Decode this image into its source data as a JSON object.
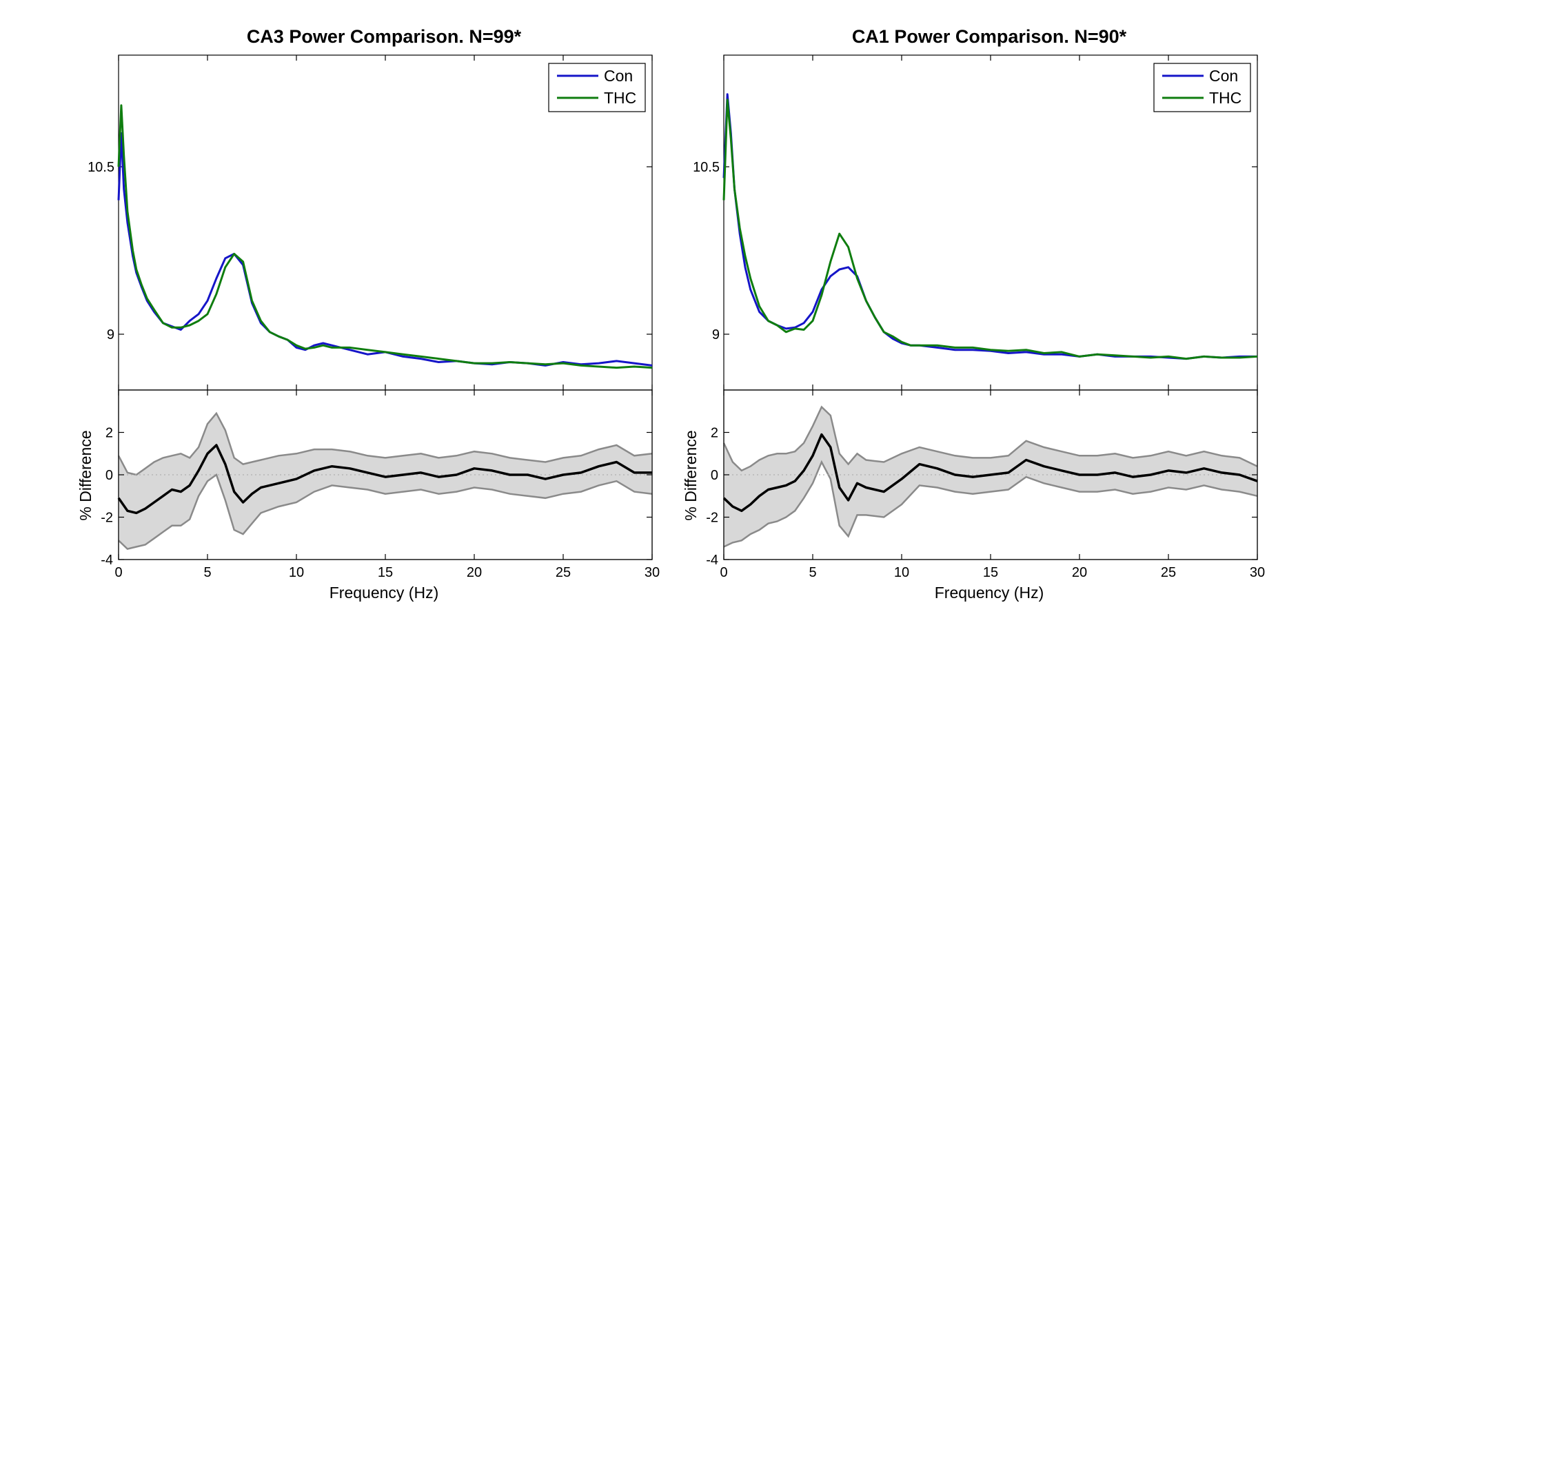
{
  "colors": {
    "con": "#1515c8",
    "thc": "#0f7d0f",
    "diff_line": "#000000",
    "band_fill": "#d8d8d8",
    "band_edge": "#8a8a8a",
    "zero_line": "#b0b0b0"
  },
  "chart_data": [
    {
      "type": "line",
      "title": "CA3 Power Comparison. N=99*",
      "legend": {
        "placement": "top-right",
        "entries": [
          "Con",
          "THC"
        ]
      },
      "top": {
        "ylim": [
          8.5,
          11.5
        ],
        "yticks": [
          9,
          10.5
        ],
        "ytick_labels": [
          "9",
          "10.5"
        ],
        "xlim": [
          0,
          30
        ],
        "grid": false,
        "series": [
          {
            "name": "Con",
            "x": [
              0,
              0.15,
              0.3,
              0.5,
              0.8,
              1.0,
              1.3,
              1.6,
              2.0,
              2.5,
              3.0,
              3.5,
              4.0,
              4.5,
              5.0,
              5.5,
              6.0,
              6.5,
              7.0,
              7.5,
              8.0,
              8.5,
              9.0,
              9.5,
              10.0,
              10.5,
              11.0,
              11.5,
              12.0,
              13,
              14,
              15,
              16,
              17,
              18,
              19,
              20,
              21,
              22,
              23,
              24,
              25,
              26,
              27,
              28,
              29,
              30
            ],
            "y": [
              10.2,
              10.8,
              10.3,
              10.0,
              9.7,
              9.55,
              9.42,
              9.3,
              9.2,
              9.1,
              9.07,
              9.04,
              9.12,
              9.18,
              9.3,
              9.5,
              9.68,
              9.72,
              9.62,
              9.28,
              9.1,
              9.02,
              8.98,
              8.95,
              8.88,
              8.86,
              8.9,
              8.92,
              8.9,
              8.86,
              8.82,
              8.84,
              8.8,
              8.78,
              8.75,
              8.76,
              8.74,
              8.73,
              8.75,
              8.74,
              8.72,
              8.75,
              8.73,
              8.74,
              8.76,
              8.74,
              8.72
            ]
          },
          {
            "name": "THC",
            "x": [
              0,
              0.15,
              0.3,
              0.5,
              0.8,
              1.0,
              1.3,
              1.6,
              2.0,
              2.5,
              3.0,
              3.5,
              4.0,
              4.5,
              5.0,
              5.5,
              6.0,
              6.5,
              7.0,
              7.5,
              8.0,
              8.5,
              9.0,
              9.5,
              10.0,
              10.5,
              11.0,
              11.5,
              12.0,
              13,
              14,
              15,
              16,
              17,
              18,
              19,
              20,
              21,
              22,
              23,
              24,
              25,
              26,
              27,
              28,
              29,
              30
            ],
            "y": [
              10.5,
              11.05,
              10.6,
              10.1,
              9.75,
              9.58,
              9.44,
              9.32,
              9.22,
              9.1,
              9.06,
              9.06,
              9.08,
              9.12,
              9.18,
              9.36,
              9.6,
              9.72,
              9.65,
              9.3,
              9.12,
              9.02,
              8.98,
              8.95,
              8.9,
              8.87,
              8.88,
              8.9,
              8.88,
              8.88,
              8.86,
              8.84,
              8.82,
              8.8,
              8.78,
              8.76,
              8.74,
              8.74,
              8.75,
              8.74,
              8.73,
              8.74,
              8.72,
              8.71,
              8.7,
              8.71,
              8.7
            ]
          }
        ]
      },
      "bottom": {
        "ylabel": "% Difference",
        "xlabel": "Frequency (Hz)",
        "ylim": [
          -4,
          4
        ],
        "yticks": [
          -4,
          -2,
          0,
          2
        ],
        "ytick_labels": [
          "-4",
          "-2",
          "0",
          "2"
        ],
        "xlim": [
          0,
          30
        ],
        "xticks": [
          0,
          5,
          10,
          15,
          20,
          25,
          30
        ],
        "xtick_labels": [
          "0",
          "5",
          "10",
          "15",
          "20",
          "25",
          "30"
        ],
        "x": [
          0,
          0.5,
          1,
          1.5,
          2,
          2.5,
          3,
          3.5,
          4,
          4.5,
          5,
          5.5,
          6,
          6.5,
          7,
          7.5,
          8,
          9,
          10,
          11,
          12,
          13,
          14,
          15,
          16,
          17,
          18,
          19,
          20,
          21,
          22,
          23,
          24,
          25,
          26,
          27,
          28,
          29,
          30
        ],
        "mean": [
          -1.1,
          -1.7,
          -1.8,
          -1.6,
          -1.3,
          -1.0,
          -0.7,
          -0.8,
          -0.5,
          0.2,
          1.0,
          1.4,
          0.5,
          -0.8,
          -1.3,
          -0.9,
          -0.6,
          -0.4,
          -0.2,
          0.2,
          0.4,
          0.3,
          0.1,
          -0.1,
          0.0,
          0.1,
          -0.1,
          0.0,
          0.3,
          0.2,
          0.0,
          0.0,
          -0.2,
          0.0,
          0.1,
          0.4,
          0.6,
          0.1,
          0.1
        ],
        "upper": [
          0.9,
          0.1,
          0.0,
          0.3,
          0.6,
          0.8,
          0.9,
          1.0,
          0.8,
          1.3,
          2.4,
          2.9,
          2.1,
          0.8,
          0.5,
          0.6,
          0.7,
          0.9,
          1.0,
          1.2,
          1.2,
          1.1,
          0.9,
          0.8,
          0.9,
          1.0,
          0.8,
          0.9,
          1.1,
          1.0,
          0.8,
          0.7,
          0.6,
          0.8,
          0.9,
          1.2,
          1.4,
          0.9,
          1.0
        ],
        "lower": [
          -3.1,
          -3.5,
          -3.4,
          -3.3,
          -3.0,
          -2.7,
          -2.4,
          -2.4,
          -2.1,
          -1.0,
          -0.3,
          0.0,
          -1.2,
          -2.6,
          -2.8,
          -2.3,
          -1.8,
          -1.5,
          -1.3,
          -0.8,
          -0.5,
          -0.6,
          -0.7,
          -0.9,
          -0.8,
          -0.7,
          -0.9,
          -0.8,
          -0.6,
          -0.7,
          -0.9,
          -1.0,
          -1.1,
          -0.9,
          -0.8,
          -0.5,
          -0.3,
          -0.8,
          -0.9
        ]
      }
    },
    {
      "type": "line",
      "title": "CA1 Power Comparison. N=90*",
      "legend": {
        "placement": "top-right",
        "entries": [
          "Con",
          "THC"
        ]
      },
      "top": {
        "ylim": [
          8.5,
          11.5
        ],
        "yticks": [
          9,
          10.5
        ],
        "ytick_labels": [
          "9",
          "10.5"
        ],
        "xlim": [
          0,
          30
        ],
        "grid": false,
        "series": [
          {
            "name": "Con",
            "x": [
              0,
              0.2,
              0.4,
              0.6,
              0.9,
              1.2,
              1.5,
              2.0,
              2.5,
              3.0,
              3.5,
              4.0,
              4.5,
              5.0,
              5.5,
              6.0,
              6.5,
              7.0,
              7.5,
              8.0,
              8.5,
              9.0,
              9.5,
              10.0,
              10.5,
              11,
              12,
              13,
              14,
              15,
              16,
              17,
              18,
              19,
              20,
              21,
              22,
              23,
              24,
              25,
              26,
              27,
              28,
              29,
              30
            ],
            "y": [
              10.4,
              11.15,
              10.8,
              10.3,
              9.9,
              9.6,
              9.4,
              9.2,
              9.12,
              9.08,
              9.05,
              9.06,
              9.1,
              9.2,
              9.4,
              9.52,
              9.58,
              9.6,
              9.52,
              9.3,
              9.15,
              9.02,
              8.96,
              8.92,
              8.9,
              8.9,
              8.88,
              8.86,
              8.86,
              8.85,
              8.83,
              8.84,
              8.82,
              8.82,
              8.8,
              8.82,
              8.8,
              8.8,
              8.8,
              8.79,
              8.78,
              8.8,
              8.79,
              8.8,
              8.8
            ]
          },
          {
            "name": "THC",
            "x": [
              0,
              0.2,
              0.4,
              0.6,
              0.9,
              1.2,
              1.5,
              2.0,
              2.5,
              3.0,
              3.5,
              4.0,
              4.5,
              5.0,
              5.5,
              6.0,
              6.5,
              7.0,
              7.5,
              8.0,
              8.5,
              9.0,
              9.5,
              10.0,
              10.5,
              11,
              12,
              13,
              14,
              15,
              16,
              17,
              18,
              19,
              20,
              21,
              22,
              23,
              24,
              25,
              26,
              27,
              28,
              29,
              30
            ],
            "y": [
              10.2,
              11.1,
              10.75,
              10.3,
              9.95,
              9.7,
              9.5,
              9.25,
              9.12,
              9.08,
              9.02,
              9.05,
              9.04,
              9.12,
              9.35,
              9.65,
              9.9,
              9.78,
              9.5,
              9.3,
              9.15,
              9.02,
              8.98,
              8.93,
              8.9,
              8.9,
              8.9,
              8.88,
              8.88,
              8.86,
              8.85,
              8.86,
              8.83,
              8.84,
              8.8,
              8.82,
              8.81,
              8.8,
              8.79,
              8.8,
              8.78,
              8.8,
              8.79,
              8.79,
              8.8
            ]
          }
        ]
      },
      "bottom": {
        "ylabel": "% Difference",
        "xlabel": "Frequency (Hz)",
        "ylim": [
          -4,
          4
        ],
        "yticks": [
          -4,
          -2,
          0,
          2
        ],
        "ytick_labels": [
          "-4",
          "-2",
          "0",
          "2"
        ],
        "xlim": [
          0,
          30
        ],
        "xticks": [
          0,
          5,
          10,
          15,
          20,
          25,
          30
        ],
        "xtick_labels": [
          "0",
          "5",
          "10",
          "15",
          "20",
          "25",
          "30"
        ],
        "x": [
          0,
          0.5,
          1,
          1.5,
          2,
          2.5,
          3,
          3.5,
          4,
          4.5,
          5,
          5.5,
          6,
          6.5,
          7,
          7.5,
          8,
          9,
          10,
          11,
          12,
          13,
          14,
          15,
          16,
          17,
          18,
          19,
          20,
          21,
          22,
          23,
          24,
          25,
          26,
          27,
          28,
          29,
          30
        ],
        "mean": [
          -1.1,
          -1.5,
          -1.7,
          -1.4,
          -1.0,
          -0.7,
          -0.6,
          -0.5,
          -0.3,
          0.2,
          0.9,
          1.9,
          1.3,
          -0.6,
          -1.2,
          -0.4,
          -0.6,
          -0.8,
          -0.2,
          0.5,
          0.3,
          0.0,
          -0.1,
          0.0,
          0.1,
          0.7,
          0.4,
          0.2,
          0.0,
          0.0,
          0.1,
          -0.1,
          0.0,
          0.2,
          0.1,
          0.3,
          0.1,
          0.0,
          -0.3
        ],
        "upper": [
          1.5,
          0.6,
          0.2,
          0.4,
          0.7,
          0.9,
          1.0,
          1.0,
          1.1,
          1.5,
          2.3,
          3.2,
          2.8,
          1.0,
          0.5,
          1.0,
          0.7,
          0.6,
          1.0,
          1.3,
          1.1,
          0.9,
          0.8,
          0.8,
          0.9,
          1.6,
          1.3,
          1.1,
          0.9,
          0.9,
          1.0,
          0.8,
          0.9,
          1.1,
          0.9,
          1.1,
          0.9,
          0.8,
          0.4
        ],
        "lower": [
          -3.4,
          -3.2,
          -3.1,
          -2.8,
          -2.6,
          -2.3,
          -2.2,
          -2.0,
          -1.7,
          -1.1,
          -0.4,
          0.6,
          -0.2,
          -2.4,
          -2.9,
          -1.9,
          -1.9,
          -2.0,
          -1.4,
          -0.5,
          -0.6,
          -0.8,
          -0.9,
          -0.8,
          -0.7,
          -0.1,
          -0.4,
          -0.6,
          -0.8,
          -0.8,
          -0.7,
          -0.9,
          -0.8,
          -0.6,
          -0.7,
          -0.5,
          -0.7,
          -0.8,
          -1.0
        ]
      }
    }
  ]
}
